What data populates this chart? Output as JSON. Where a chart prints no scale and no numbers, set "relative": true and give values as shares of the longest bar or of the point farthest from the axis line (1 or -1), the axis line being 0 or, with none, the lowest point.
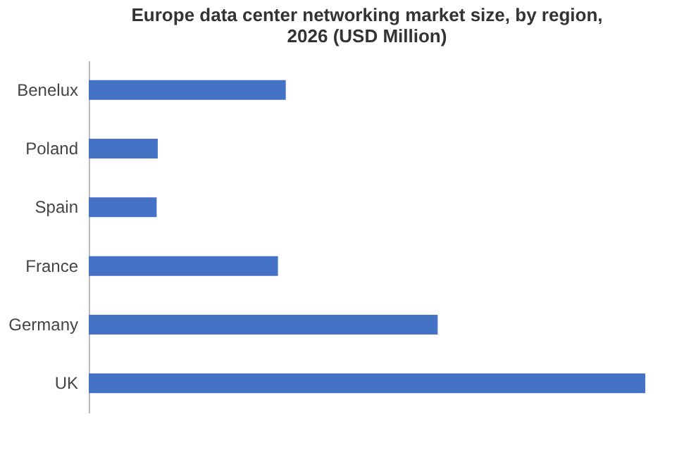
{
  "chart_data": {
    "type": "bar",
    "orientation": "horizontal",
    "relative": true,
    "title": "Europe data center networking market size, by region, 2026 (USD Million)",
    "categories": [
      "Benelux",
      "Poland",
      "Spain",
      "France",
      "Germany",
      "UK"
    ],
    "values": [
      0.354,
      0.124,
      0.122,
      0.34,
      0.627,
      1
    ],
    "color": "#4472c4"
  }
}
